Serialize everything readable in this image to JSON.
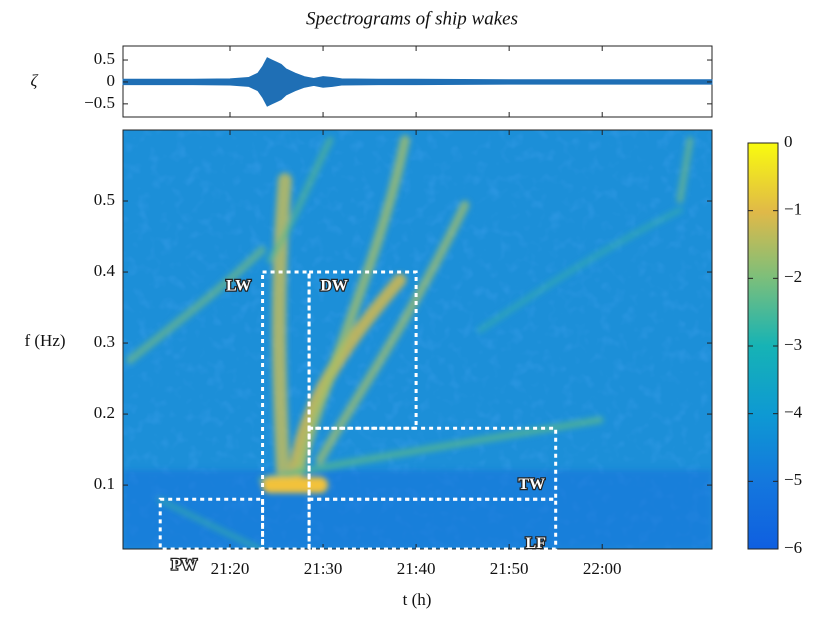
{
  "chart_data": {
    "type": "spectrogram",
    "title": "Spectrograms of ship wakes",
    "trace": {
      "ylabel": "ζ",
      "ylim": [
        -0.8,
        0.82
      ],
      "yticks": [
        0.5,
        0,
        {
          "value": -0.5,
          "label": "−0.5"
        }
      ],
      "color": "#1f6fb5",
      "x": [
        1268.5,
        1272,
        1276,
        1280,
        1282,
        1283,
        1283.5,
        1284,
        1284.5,
        1285,
        1285.5,
        1286,
        1287,
        1288,
        1289,
        1290,
        1291,
        1292,
        1296,
        1300,
        1310,
        1320,
        1331.8
      ],
      "values": [
        0.06,
        0.06,
        0.06,
        0.07,
        0.1,
        0.2,
        0.35,
        0.55,
        0.5,
        0.45,
        0.4,
        0.3,
        0.2,
        0.12,
        0.08,
        0.12,
        0.1,
        0.07,
        0.06,
        0.06,
        0.05,
        0.05,
        0.05
      ]
    },
    "xlabel": "t (h)",
    "xlim": [
      1268.5,
      1331.8
    ],
    "xticks": [
      {
        "value": 1280,
        "label": "21:20"
      },
      {
        "value": 1290,
        "label": "21:30"
      },
      {
        "value": 1300,
        "label": "21:40"
      },
      {
        "value": 1310,
        "label": "21:50"
      },
      {
        "value": 1320,
        "label": "22:00"
      }
    ],
    "ylabel": "f (Hz)",
    "ylim": [
      0.01,
      0.6
    ],
    "yticks": [
      0.1,
      0.2,
      0.3,
      0.4,
      0.5
    ],
    "colorbar": {
      "clim": [
        -6,
        0
      ],
      "ticks": [
        0,
        {
          "value": -1,
          "label": "−1"
        },
        {
          "value": -2,
          "label": "−2"
        },
        {
          "value": -3,
          "label": "−3"
        },
        {
          "value": -4,
          "label": "−4"
        },
        {
          "value": -5,
          "label": "−5"
        },
        {
          "value": -6,
          "label": "−6"
        }
      ]
    },
    "regions": [
      {
        "label": "LW",
        "x": [
          1283.5,
          1288.5
        ],
        "y": [
          0.01,
          0.4
        ]
      },
      {
        "label": "DW",
        "x": [
          1288.5,
          1300
        ],
        "y": [
          0.18,
          0.4
        ]
      },
      {
        "label": "TW",
        "x": [
          1288.5,
          1315
        ],
        "y": [
          0.08,
          0.18
        ]
      },
      {
        "label": "PW",
        "x": [
          1272.5,
          1283.5
        ],
        "y": [
          0.01,
          0.08
        ]
      },
      {
        "label": "LF",
        "x": [
          1288.5,
          1315
        ],
        "y": [
          0.01,
          0.08
        ]
      }
    ]
  }
}
